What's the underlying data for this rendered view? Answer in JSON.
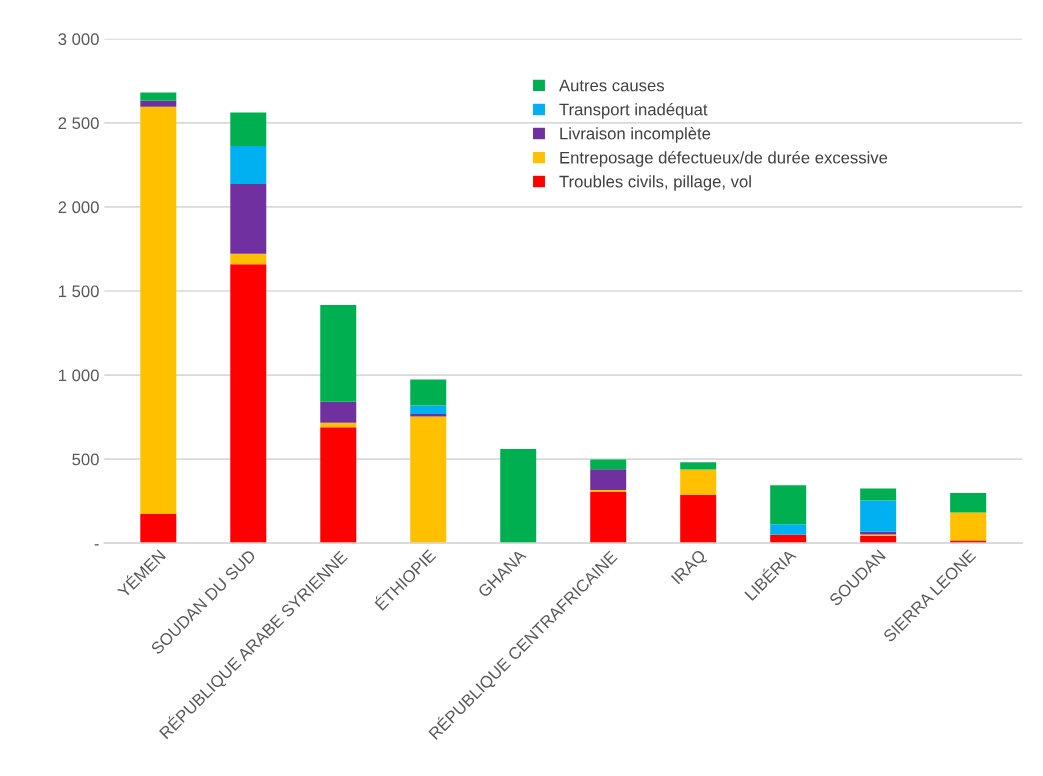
{
  "chart_data": {
    "type": "bar",
    "stacked": true,
    "categories": [
      "YÉMEN",
      "SOUDAN DU SUD",
      "RÉPUBLIQUE ARABE SYRIENNE",
      "ÉTHIOPIE",
      "GHANA",
      "RÉPUBLIQUE CENTRAFRICAINE",
      "IRAQ",
      "LIBÉRIA",
      "SOUDAN",
      "SIERRA LEONE"
    ],
    "series": [
      {
        "name": "Troubles civils, pillage, vol",
        "color": "#ff0000",
        "values": [
          174,
          1659,
          689,
          null,
          null,
          304,
          288,
          50,
          44,
          16
        ]
      },
      {
        "name": "Entreposage défectueux/de durée excessive",
        "color": "#ffc000",
        "values": [
          2422,
          62,
          28,
          753,
          null,
          12,
          150,
          null,
          8,
          166
        ]
      },
      {
        "name": "Livraison incomplète",
        "color": "#7030a0",
        "values": [
          36,
          415,
          124,
          16,
          null,
          124,
          null,
          null,
          16,
          null
        ]
      },
      {
        "name": "Transport inadéquat",
        "color": "#00b0f0",
        "values": [
          null,
          226,
          null,
          50,
          null,
          null,
          null,
          62,
          186,
          null
        ]
      },
      {
        "name": "Autres causes",
        "color": "#00b050",
        "values": [
          48,
          200,
          575,
          154,
          561,
          58,
          44,
          232,
          72,
          116
        ]
      }
    ],
    "ylim": [
      0,
      3000
    ],
    "yticks": [
      {
        "value": 0,
        "label": "-"
      },
      {
        "value": 500,
        "label": "500"
      },
      {
        "value": 1000,
        "label": "1 000"
      },
      {
        "value": 1500,
        "label": "1 500"
      },
      {
        "value": 2000,
        "label": "2 000"
      },
      {
        "value": 2500,
        "label": "2 500"
      },
      {
        "value": 3000,
        "label": "3 000"
      }
    ],
    "grid": "y",
    "legend": "top right"
  }
}
